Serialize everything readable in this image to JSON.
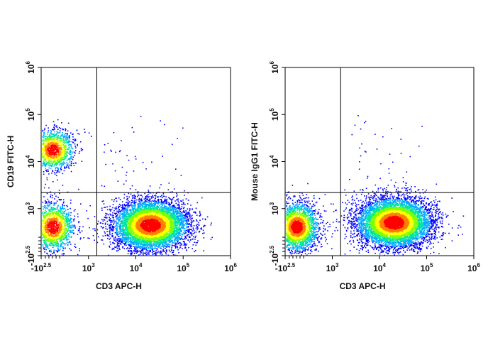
{
  "chart_data": [
    {
      "type": "scatter",
      "subtype": "flow-cytometry density dot plot",
      "xlabel": "CD3 APC-H",
      "ylabel": "CD19 FITC-H",
      "x_scale": "biexponential",
      "y_scale": "biexponential",
      "xlim": [
        -316,
        1000000
      ],
      "ylim": [
        -316,
        1000000
      ],
      "x_ticks": [
        {
          "base": "-10",
          "exp": "2.5"
        },
        {
          "base": "10",
          "exp": "3"
        },
        {
          "base": "10",
          "exp": "4"
        },
        {
          "base": "10",
          "exp": "5"
        },
        {
          "base": "10",
          "exp": "6"
        }
      ],
      "y_ticks": [
        {
          "base": "-10",
          "exp": "2.5"
        },
        {
          "base": "10",
          "exp": "3"
        },
        {
          "base": "10",
          "exp": "4"
        },
        {
          "base": "10",
          "exp": "5"
        },
        {
          "base": "10",
          "exp": "6"
        }
      ],
      "quadrant_gate": {
        "x": 1500,
        "y": 2200
      },
      "populations": [
        {
          "x_center": 0,
          "y_center": 18000,
          "count": 1400
        },
        {
          "x_center": 0,
          "y_center": 500,
          "count": 1600
        },
        {
          "x_center": 20000,
          "y_center": 550,
          "count": 6500
        }
      ],
      "color_map": [
        "#0000ff",
        "#00aaff",
        "#00e5a0",
        "#7cff00",
        "#ffff00",
        "#ff8000",
        "#ff0000"
      ]
    },
    {
      "type": "scatter",
      "subtype": "flow-cytometry density dot plot",
      "xlabel": "CD3 APC-H",
      "ylabel": "Mouse IgG1 FITC-H",
      "x_scale": "biexponential",
      "y_scale": "biexponential",
      "xlim": [
        -316,
        1000000
      ],
      "ylim": [
        -316,
        1000000
      ],
      "x_ticks": [
        {
          "base": "-10",
          "exp": "2.5"
        },
        {
          "base": "10",
          "exp": "3"
        },
        {
          "base": "10",
          "exp": "4"
        },
        {
          "base": "10",
          "exp": "5"
        },
        {
          "base": "10",
          "exp": "6"
        }
      ],
      "y_ticks": [
        {
          "base": "-10",
          "exp": "2.5"
        },
        {
          "base": "10",
          "exp": "3"
        },
        {
          "base": "10",
          "exp": "4"
        },
        {
          "base": "10",
          "exp": "5"
        },
        {
          "base": "10",
          "exp": "6"
        }
      ],
      "quadrant_gate": {
        "x": 1500,
        "y": 2200
      },
      "populations": [
        {
          "x_center": 0,
          "y_center": 500,
          "count": 2600
        },
        {
          "x_center": 20000,
          "y_center": 620,
          "count": 7000
        }
      ],
      "color_map": [
        "#0000ff",
        "#00aaff",
        "#00e5a0",
        "#7cff00",
        "#ffff00",
        "#ff8000",
        "#ff0000"
      ]
    }
  ]
}
